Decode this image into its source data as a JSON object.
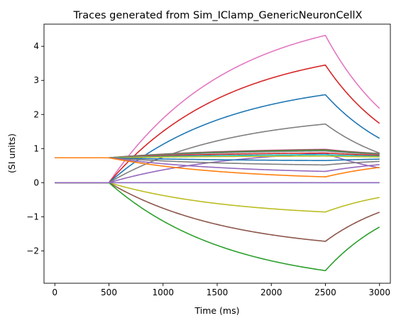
{
  "chart_data": {
    "type": "line",
    "title": "Traces generated from Sim_IClamp_GenericNeuronCellX",
    "xlabel": "Time (ms)",
    "ylabel": "(SI units)",
    "xlim": [
      -100,
      3100
    ],
    "ylim": [
      -2.95,
      4.65
    ],
    "x_ticks": [
      0,
      500,
      1000,
      1500,
      2000,
      2500,
      3000
    ],
    "y_ticks": [
      -2,
      -1,
      0,
      1,
      2,
      3,
      4
    ],
    "y_tick_labels": [
      "−2",
      "−1",
      "0",
      "1",
      "2",
      "3",
      "4"
    ],
    "grid": false,
    "legend": "none",
    "stim_start": 500,
    "stim_end": 2500,
    "t_end": 3000,
    "tau_on_ms": 1100,
    "tau_off_ms": 730,
    "series": [
      {
        "color": "#e377c2",
        "base": 0.0,
        "peak": 4.32
      },
      {
        "color": "#d62728",
        "base": 0.0,
        "peak": 3.45
      },
      {
        "color": "#1f77b4",
        "base": 0.0,
        "peak": 2.58
      },
      {
        "color": "#7f7f7f",
        "base": 0.0,
        "peak": 1.72
      },
      {
        "color": "#9467bd",
        "base": 0.0,
        "peak": 0.86
      },
      {
        "color": "#17becf",
        "base": 0.0,
        "peak": 0.0
      },
      {
        "color": "#bcbd22",
        "base": 0.0,
        "peak": -0.86
      },
      {
        "color": "#8c564b",
        "base": 0.0,
        "peak": -1.72
      },
      {
        "color": "#2ca02c",
        "base": 0.0,
        "peak": -2.58
      },
      {
        "color": "#e377c2",
        "base": 0.73,
        "peak": 0.98
      },
      {
        "color": "#8c564b",
        "base": 0.73,
        "peak": 0.97
      },
      {
        "color": "#2ca02c",
        "base": 0.73,
        "peak": 0.95
      },
      {
        "color": "#7f7f7f",
        "base": 0.73,
        "peak": 0.93
      },
      {
        "color": "#d62728",
        "base": 0.73,
        "peak": 0.87
      },
      {
        "color": "#17becf",
        "base": 0.73,
        "peak": 0.82
      },
      {
        "color": "#bcbd22",
        "base": 0.73,
        "peak": 0.78
      },
      {
        "color": "#1f77b4",
        "base": 0.73,
        "peak": 0.65
      },
      {
        "color": "#7f7f7f",
        "base": 0.73,
        "peak": 0.52
      },
      {
        "color": "#9467bd",
        "base": 0.73,
        "peak": 0.33
      },
      {
        "color": "#ff7f0e",
        "base": 0.73,
        "peak": 0.17
      },
      {
        "color": "#9467bd",
        "base": 0.0,
        "peak": 0.0
      }
    ]
  }
}
